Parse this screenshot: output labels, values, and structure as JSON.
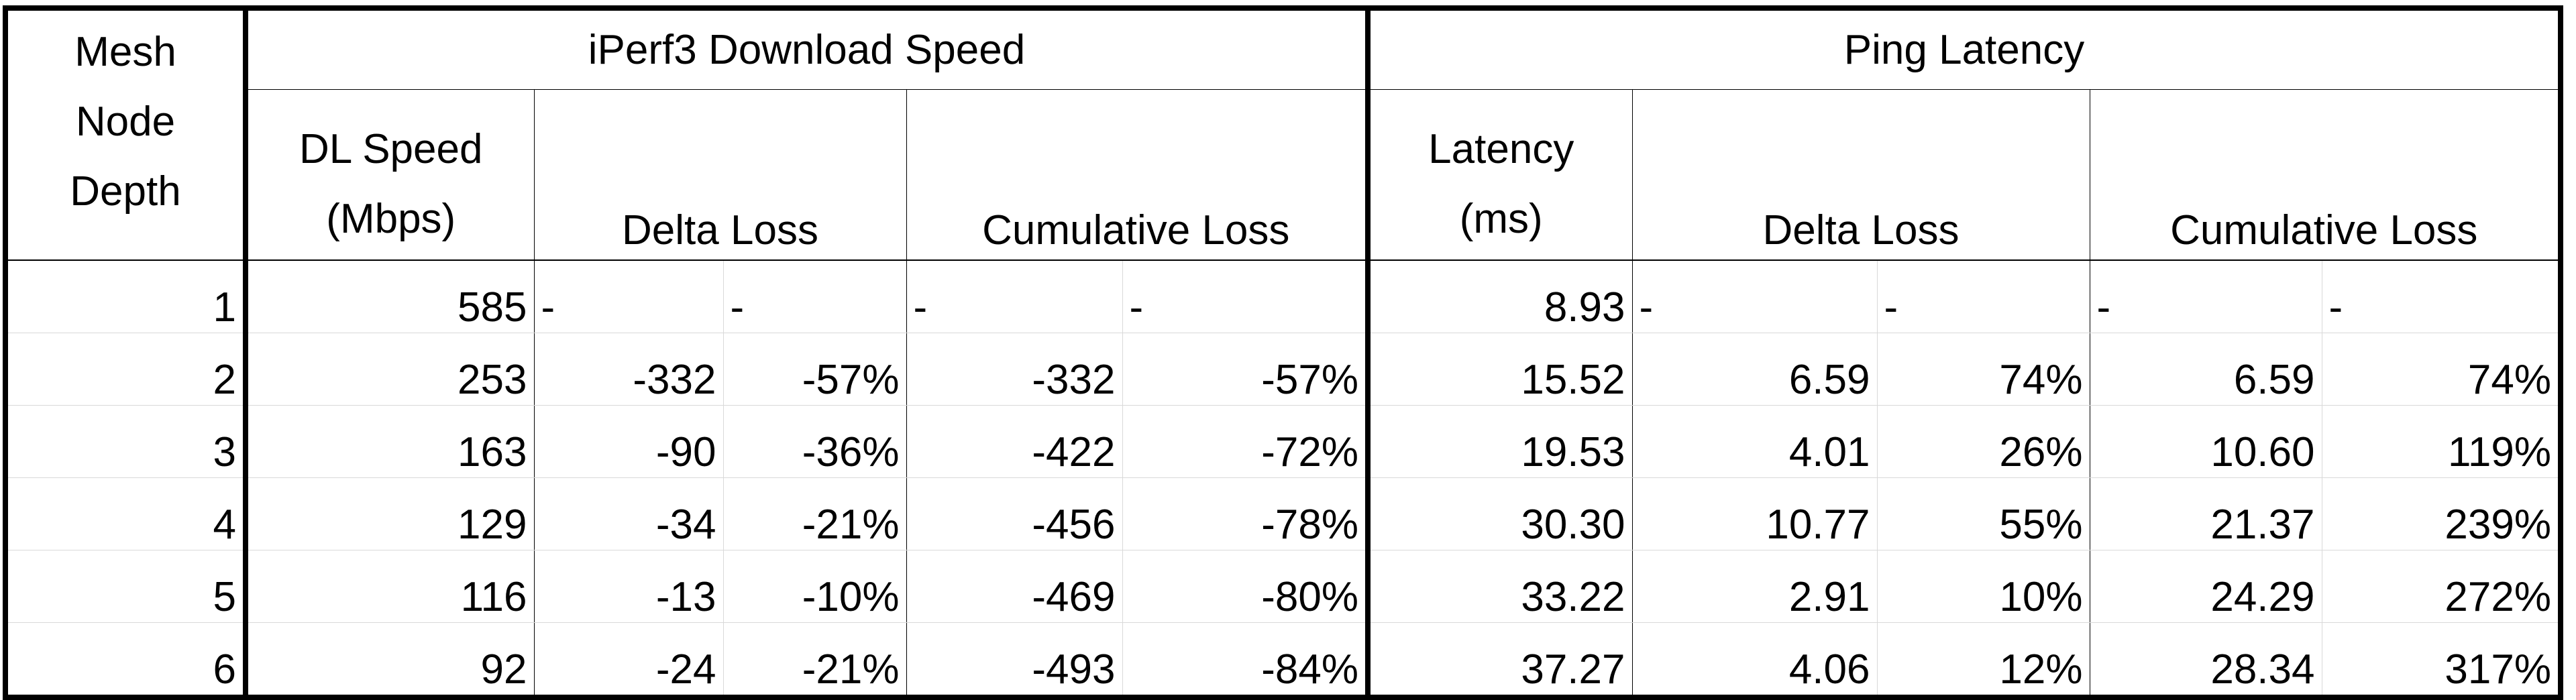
{
  "chart_data": {
    "type": "table",
    "group_headers": {
      "mesh": "Mesh Node Depth",
      "iperf": "iPerf3 Download Speed",
      "ping": "Ping Latency"
    },
    "columns": {
      "mesh_line1": "Mesh",
      "mesh_line2": "Node",
      "mesh_line3": "Depth",
      "dl_line1": "DL Speed",
      "dl_line2": "(Mbps)",
      "dl_delta": "Delta Loss",
      "dl_cum": "Cumulative Loss",
      "lat_line1": "Latency",
      "lat_line2": "(ms)",
      "lat_delta": "Delta Loss",
      "lat_cum": "Cumulative Loss"
    },
    "rows": [
      [
        "1",
        "585",
        "-",
        "-",
        "-",
        "-",
        "8.93",
        "-",
        "-",
        "-",
        "-"
      ],
      [
        "2",
        "253",
        "-332",
        "-57%",
        "-332",
        "-57%",
        "15.52",
        "6.59",
        "74%",
        "6.59",
        "74%"
      ],
      [
        "3",
        "163",
        "-90",
        "-36%",
        "-422",
        "-72%",
        "19.53",
        "4.01",
        "26%",
        "10.60",
        "119%"
      ],
      [
        "4",
        "129",
        "-34",
        "-21%",
        "-456",
        "-78%",
        "30.30",
        "10.77",
        "55%",
        "21.37",
        "239%"
      ],
      [
        "5",
        "116",
        "-13",
        "-10%",
        "-469",
        "-80%",
        "33.22",
        "2.91",
        "10%",
        "24.29",
        "272%"
      ],
      [
        "6",
        "92",
        "-24",
        "-21%",
        "-493",
        "-84%",
        "37.27",
        "4.06",
        "12%",
        "28.34",
        "317%"
      ]
    ]
  }
}
